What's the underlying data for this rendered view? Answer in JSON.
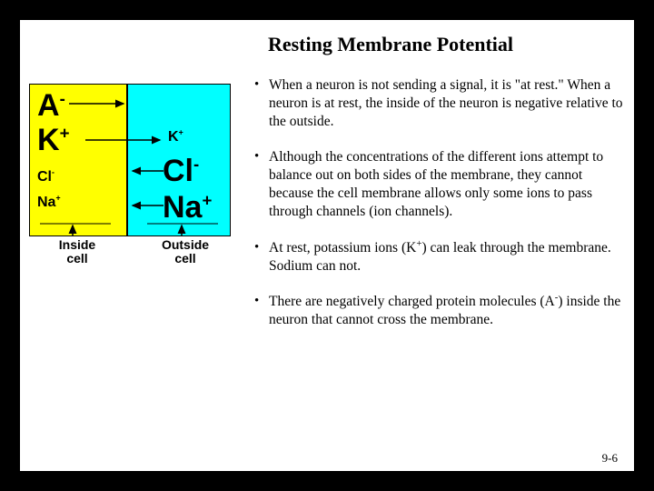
{
  "title": "Resting Membrane Potential",
  "diagram": {
    "inside_bg": "#ffff00",
    "outside_bg": "#00ffff",
    "ions": {
      "a_minus_big": "A",
      "k_plus_big": "K",
      "cl_minus_small": "Cl",
      "na_plus_small": "Na",
      "k_plus_small": "K",
      "cl_minus_big": "Cl",
      "na_plus_big": "Na"
    },
    "labels": {
      "inside": "Inside\ncell",
      "outside": "Outside\ncell"
    }
  },
  "bullets": [
    "When a neuron is not sending a signal, it is \"at rest.\" When a neuron is at rest, the inside of the neuron is negative relative to the outside.",
    "Although the concentrations of the different ions attempt to balance out on both sides of the membrane, they cannot because the cell membrane allows only some ions to pass through channels (ion channels).",
    "At rest, potassium ions (K<sup>+</sup>) can leak through the membrane. Sodium can not.",
    "There are negatively charged protein molecules (A<sup>-</sup>) inside the neuron that cannot cross the membrane."
  ],
  "page_number": "9-6"
}
